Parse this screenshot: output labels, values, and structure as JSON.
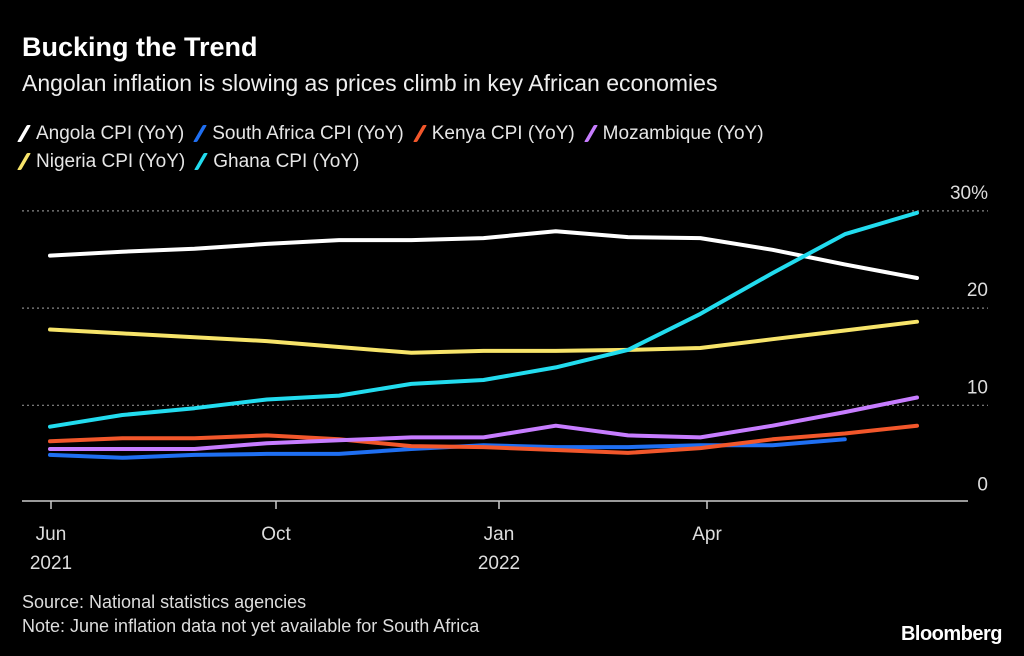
{
  "header": {
    "title": "Bucking the Trend",
    "subtitle": "Angolan inflation is slowing as prices climb in key African economies"
  },
  "footer": {
    "source": "Source: National statistics agencies",
    "note": "Note: June inflation data not yet available for South Africa",
    "logo": "Bloomberg"
  },
  "chart_data": {
    "type": "line",
    "title": "Bucking the Trend",
    "subtitle": "Angolan inflation is slowing as prices climb in key African economies",
    "x": [
      "2021-06",
      "2021-07",
      "2021-08",
      "2021-09",
      "2021-10",
      "2021-11",
      "2021-12",
      "2022-01",
      "2022-02",
      "2022-03",
      "2022-04",
      "2022-05",
      "2022-06"
    ],
    "x_ticks": [
      {
        "label": "Jun",
        "year": "2021"
      },
      {
        "label": "Oct",
        "year": ""
      },
      {
        "label": "Jan",
        "year": "2022"
      },
      {
        "label": "Apr",
        "year": ""
      }
    ],
    "y_ticks": [
      "0",
      "10",
      "20",
      "30%"
    ],
    "y_tick_values": [
      0,
      10,
      20,
      30
    ],
    "ylim": [
      0,
      30
    ],
    "y_axis_side": "right",
    "grid": true,
    "legend_placement": "top",
    "series": [
      {
        "name": "Angola CPI (YoY)",
        "color": "#ffffff",
        "values": [
          25.4,
          25.8,
          26.1,
          26.6,
          27.0,
          27.0,
          27.2,
          27.9,
          27.3,
          27.2,
          26.0,
          24.5,
          23.1
        ]
      },
      {
        "name": "South Africa CPI (YoY)",
        "color": "#1f6ff2",
        "values": [
          4.9,
          4.6,
          4.9,
          5.0,
          5.0,
          5.5,
          5.9,
          5.7,
          5.7,
          5.9,
          5.9,
          6.5,
          null
        ]
      },
      {
        "name": "Kenya CPI (YoY)",
        "color": "#f2572b",
        "values": [
          6.3,
          6.6,
          6.6,
          6.9,
          6.5,
          5.8,
          5.7,
          5.4,
          5.1,
          5.6,
          6.5,
          7.1,
          7.9
        ]
      },
      {
        "name": "Mozambique (YoY)",
        "color": "#c77dff",
        "values": [
          5.5,
          5.5,
          5.5,
          6.1,
          6.4,
          6.7,
          6.7,
          7.9,
          6.9,
          6.7,
          7.9,
          9.3,
          10.8
        ]
      },
      {
        "name": "Nigeria CPI (YoY)",
        "color": "#f7e46a",
        "values": [
          17.8,
          17.4,
          17.0,
          16.6,
          16.0,
          15.4,
          15.6,
          15.6,
          15.7,
          15.9,
          16.8,
          17.7,
          18.6
        ]
      },
      {
        "name": "Ghana CPI (YoY)",
        "color": "#22dcef",
        "values": [
          7.8,
          9.0,
          9.7,
          10.6,
          11.0,
          12.2,
          12.6,
          13.9,
          15.7,
          19.4,
          23.6,
          27.6,
          29.8
        ]
      }
    ]
  }
}
